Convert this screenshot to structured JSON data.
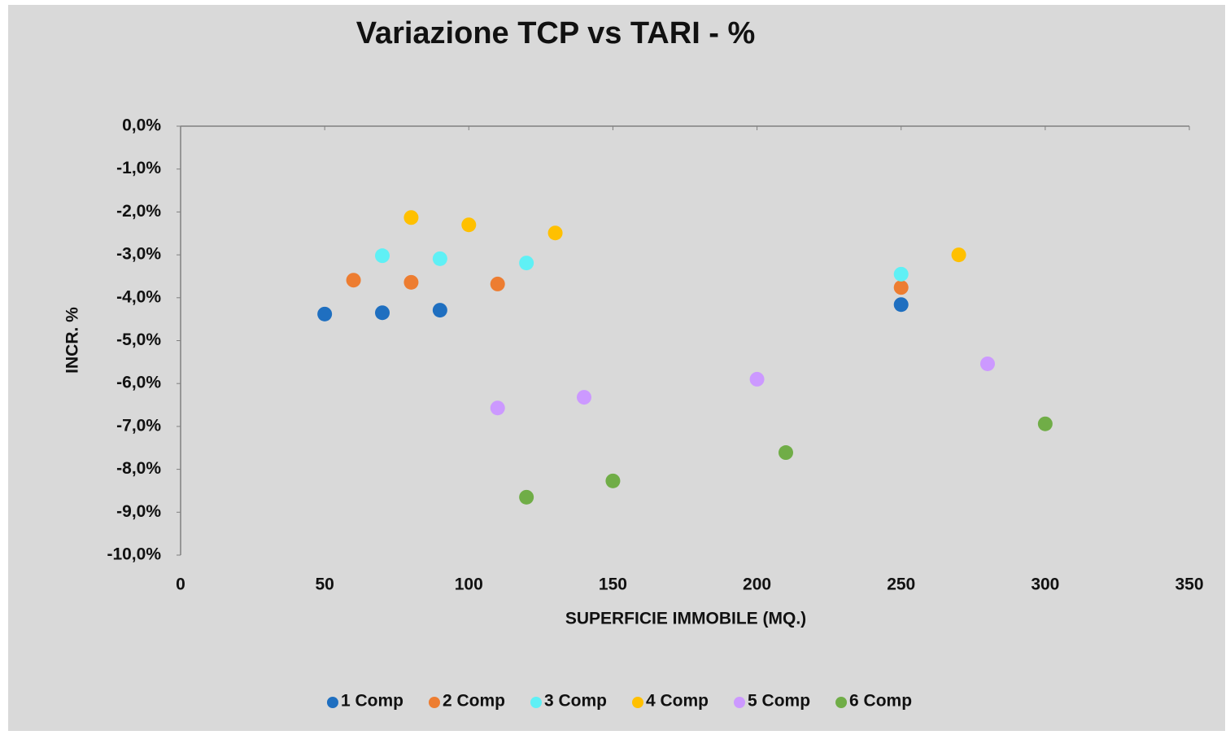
{
  "chart_data": {
    "type": "scatter",
    "title": "Variazione  TCP vs TARI - %",
    "xlabel": "SUPERFICIE IMMOBILE  (MQ.)",
    "ylabel": "INCR. %",
    "xlim": [
      0,
      350
    ],
    "xticks": [
      0,
      50,
      100,
      150,
      200,
      250,
      300,
      350
    ],
    "ylim": [
      -10,
      0
    ],
    "yticks": [
      {
        "value": 0,
        "label": "0,0%"
      },
      {
        "value": -1,
        "label": "-1,0%"
      },
      {
        "value": -2,
        "label": "-2,0%"
      },
      {
        "value": -3,
        "label": "-3,0%"
      },
      {
        "value": -4,
        "label": "-4,0%"
      },
      {
        "value": -5,
        "label": "-5,0%"
      },
      {
        "value": -6,
        "label": "-6,0%"
      },
      {
        "value": -7,
        "label": "-7,0%"
      },
      {
        "value": -8,
        "label": "-8,0%"
      },
      {
        "value": -9,
        "label": "-9,0%"
      },
      {
        "value": -10,
        "label": "-10,0%"
      }
    ],
    "grid": false,
    "legend": "bottom",
    "series": [
      {
        "name": "1 Comp",
        "color": "#1f6fc0",
        "x": [
          50,
          70,
          90,
          250
        ],
        "values": [
          -4.38,
          -4.35,
          -4.29,
          -4.16
        ]
      },
      {
        "name": "2 Comp",
        "color": "#ed7d31",
        "x": [
          60,
          80,
          110,
          250
        ],
        "values": [
          -3.59,
          -3.64,
          -3.68,
          -3.76
        ]
      },
      {
        "name": "3 Comp",
        "color": "#5ff0f5",
        "x": [
          70,
          90,
          120,
          250
        ],
        "values": [
          -3.02,
          -3.09,
          -3.19,
          -3.45
        ]
      },
      {
        "name": "4 Comp",
        "color": "#ffc000",
        "x": [
          80,
          100,
          130,
          270
        ],
        "values": [
          -2.13,
          -2.3,
          -2.49,
          -3.0
        ]
      },
      {
        "name": "5 Comp",
        "color": "#cc99ff",
        "x": [
          110,
          140,
          200,
          280
        ],
        "values": [
          -6.57,
          -6.32,
          -5.9,
          -5.54
        ]
      },
      {
        "name": "6 Comp",
        "color": "#70ad47",
        "x": [
          120,
          150,
          210,
          300
        ],
        "values": [
          -8.65,
          -8.27,
          -7.61,
          -6.94
        ]
      }
    ]
  }
}
